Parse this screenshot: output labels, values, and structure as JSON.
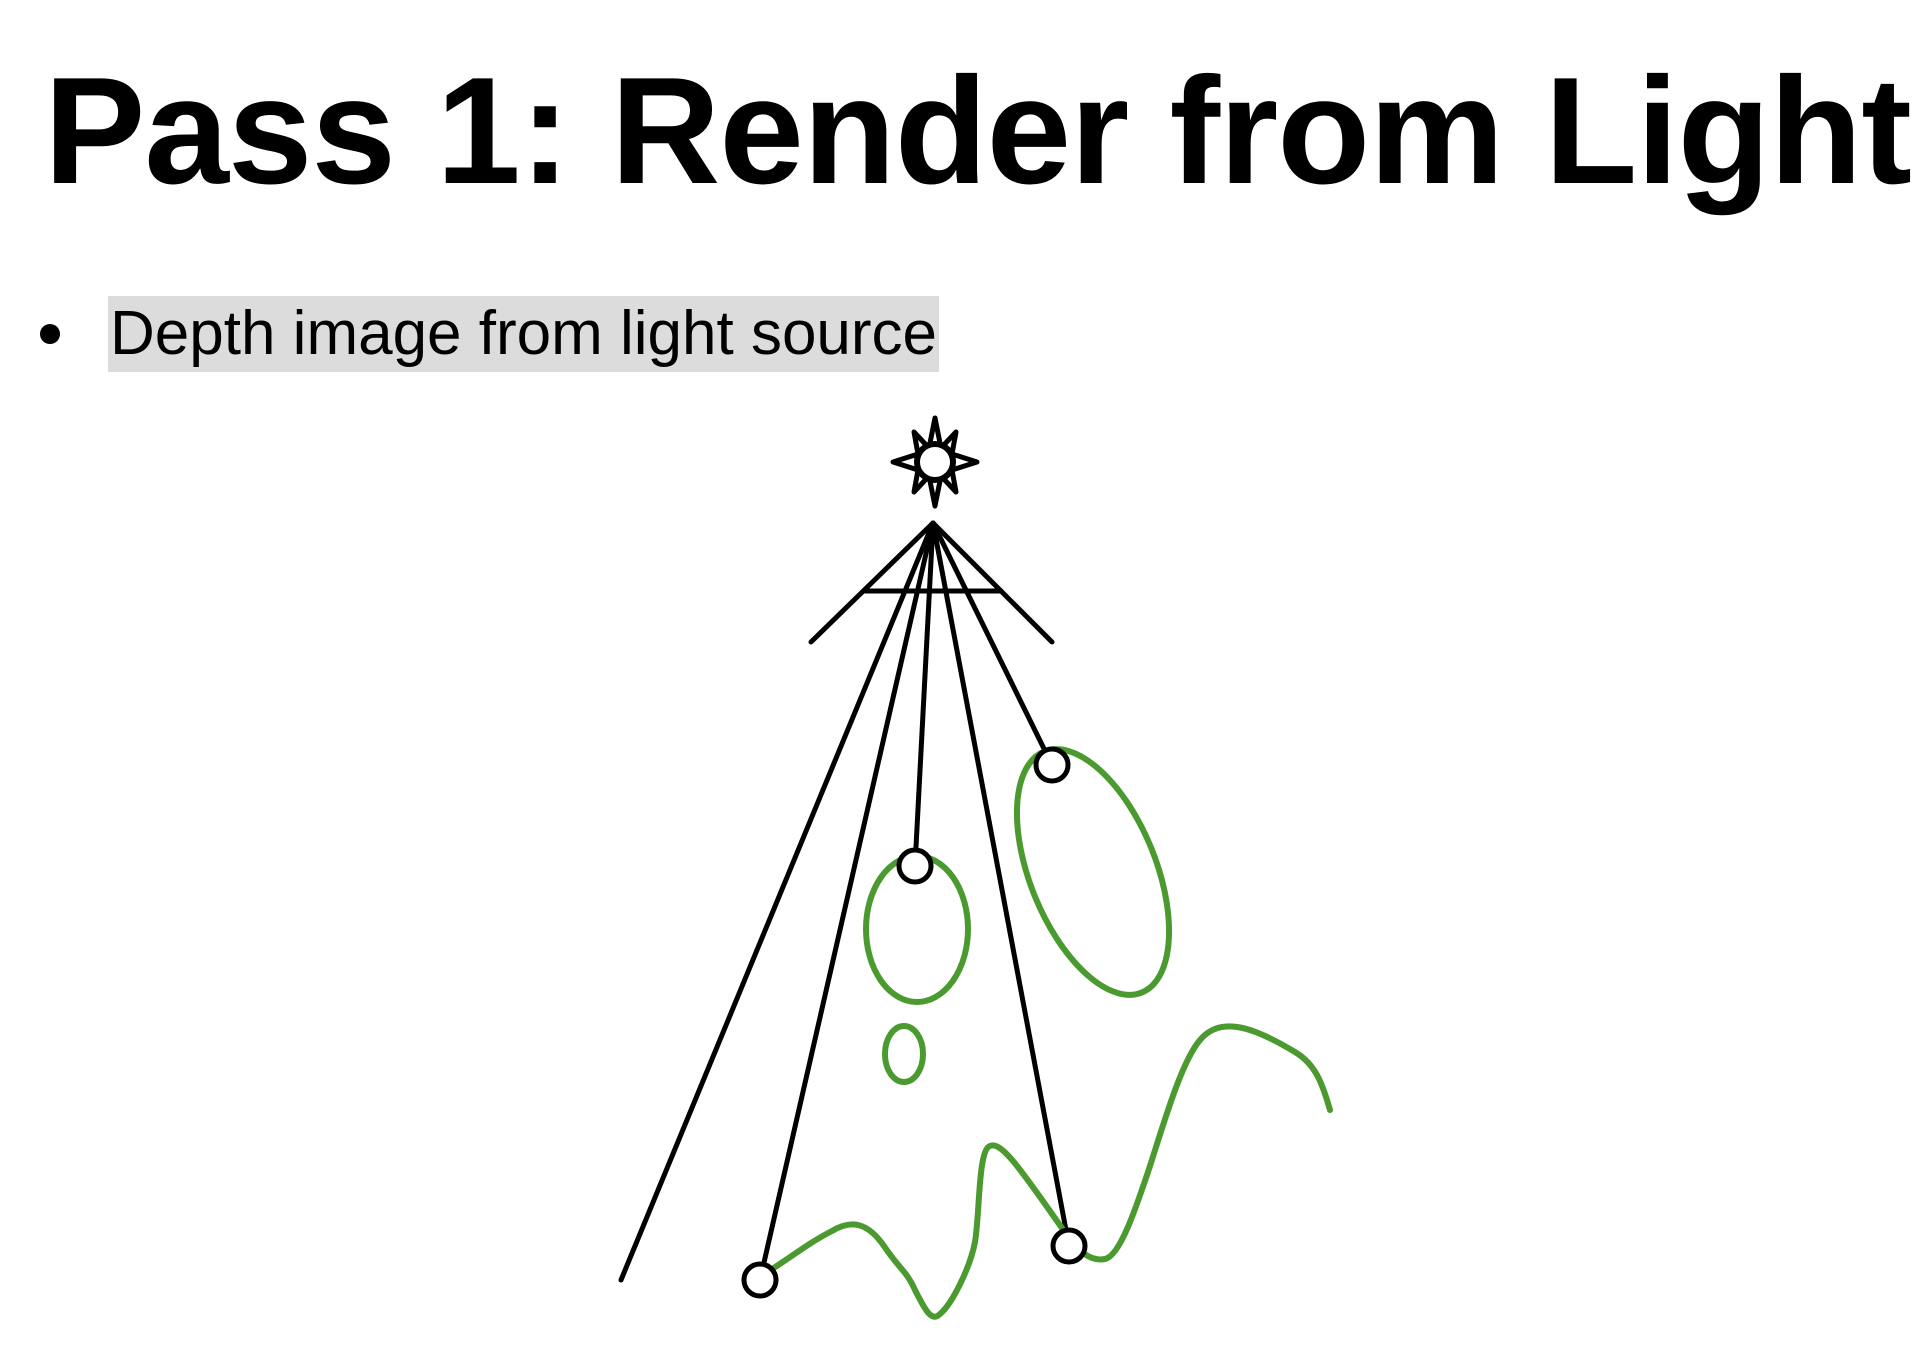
{
  "slide": {
    "title": "Pass 1: Render from Light",
    "bullets": [
      {
        "text": "Depth image from light source"
      }
    ]
  },
  "diagram": {
    "light_source_icon": "sun-icon",
    "colors": {
      "stroke": "#000000",
      "object": "#4a9a2f",
      "highlight": "#dcdcdc"
    }
  }
}
